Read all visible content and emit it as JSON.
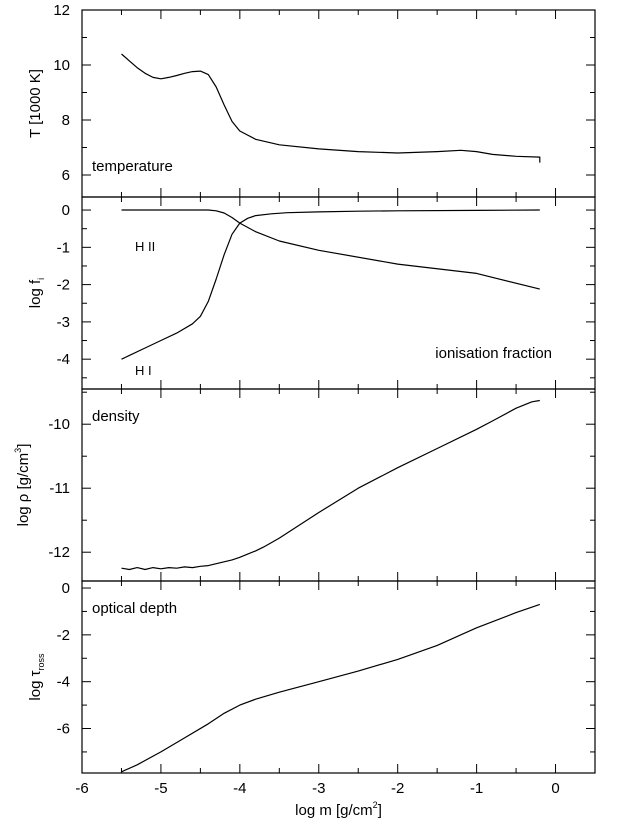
{
  "chart_data": [
    {
      "type": "line",
      "panel": "temperature",
      "ylabel": "T [1000 K]",
      "annotation": "temperature",
      "xlim": [
        -6,
        0.5
      ],
      "ylim": [
        5.2,
        12
      ],
      "yticks": [
        6,
        8,
        10,
        12
      ],
      "ytick_labels": [
        "6",
        "8",
        "10",
        "12"
      ],
      "series": [
        {
          "x": [
            -5.5,
            -5.4,
            -5.3,
            -5.2,
            -5.1,
            -5.0,
            -4.9,
            -4.8,
            -4.7,
            -4.6,
            -4.5,
            -4.4,
            -4.3,
            -4.2,
            -4.1,
            -4.0,
            -3.8,
            -3.5,
            -3.0,
            -2.5,
            -2.0,
            -1.5,
            -1.2,
            -1.0,
            -0.8,
            -0.5,
            -0.2,
            -0.2
          ],
          "y": [
            10.4,
            10.15,
            9.9,
            9.7,
            9.55,
            9.5,
            9.55,
            9.62,
            9.7,
            9.76,
            9.78,
            9.65,
            9.2,
            8.55,
            7.95,
            7.6,
            7.3,
            7.1,
            6.95,
            6.85,
            6.8,
            6.85,
            6.9,
            6.85,
            6.75,
            6.68,
            6.65,
            6.45
          ]
        }
      ]
    },
    {
      "type": "line",
      "panel": "ionisation",
      "ylabel": "log f",
      "ylabel_sub": "i",
      "annotation": "ionisation fraction",
      "xlim": [
        -6,
        0.5
      ],
      "ylim": [
        -4.8,
        0.35
      ],
      "yticks": [
        0,
        -1,
        -2,
        -3,
        -4
      ],
      "ytick_labels": [
        "0",
        "-1",
        "-2",
        "-3",
        "-4"
      ],
      "series": [
        {
          "name": "H II",
          "x": [
            -5.5,
            -5.0,
            -4.6,
            -4.4,
            -4.3,
            -4.2,
            -4.1,
            -4.0,
            -3.8,
            -3.5,
            -3.0,
            -2.0,
            -1.0,
            -0.2
          ],
          "y": [
            0.0,
            0.0,
            0.0,
            0.0,
            -0.02,
            -0.08,
            -0.2,
            -0.35,
            -0.58,
            -0.83,
            -1.08,
            -1.45,
            -1.7,
            -2.12
          ]
        },
        {
          "name": "H I",
          "x": [
            -5.5,
            -5.2,
            -5.0,
            -4.8,
            -4.6,
            -4.5,
            -4.4,
            -4.3,
            -4.2,
            -4.1,
            -4.0,
            -3.9,
            -3.8,
            -3.6,
            -3.4,
            -3.0,
            -2.5,
            -2.0,
            -1.0,
            -0.2
          ],
          "y": [
            -4.0,
            -3.7,
            -3.5,
            -3.3,
            -3.05,
            -2.85,
            -2.45,
            -1.85,
            -1.2,
            -0.65,
            -0.35,
            -0.22,
            -0.15,
            -0.1,
            -0.07,
            -0.05,
            -0.03,
            -0.02,
            -0.01,
            0.0
          ]
        }
      ],
      "series_labels": [
        "H II",
        "H I"
      ]
    },
    {
      "type": "line",
      "panel": "density",
      "ylabel": "log ρ [g/cm",
      "ylabel_sup": "3",
      "ylabel_tail": "]",
      "annotation": "density",
      "xlim": [
        -6,
        0.5
      ],
      "ylim": [
        -12.45,
        -9.45
      ],
      "yticks": [
        -10,
        -11,
        -12
      ],
      "ytick_labels": [
        "-10",
        "-11",
        "-12"
      ],
      "series": [
        {
          "x": [
            -5.5,
            -5.4,
            -5.3,
            -5.2,
            -5.1,
            -5.0,
            -4.9,
            -4.8,
            -4.7,
            -4.6,
            -4.5,
            -4.4,
            -4.3,
            -4.2,
            -4.1,
            -4.0,
            -3.9,
            -3.8,
            -3.7,
            -3.6,
            -3.5,
            -3.4,
            -3.3,
            -3.2,
            -3.1,
            -3.0,
            -2.5,
            -2.0,
            -1.5,
            -1.0,
            -0.8,
            -0.5,
            -0.3,
            -0.2
          ],
          "y": [
            -12.25,
            -12.27,
            -12.24,
            -12.27,
            -12.24,
            -12.26,
            -12.24,
            -12.25,
            -12.23,
            -12.24,
            -12.22,
            -12.21,
            -12.18,
            -12.15,
            -12.12,
            -12.08,
            -12.03,
            -11.98,
            -11.92,
            -11.85,
            -11.78,
            -11.7,
            -11.62,
            -11.54,
            -11.46,
            -11.38,
            -11.0,
            -10.68,
            -10.38,
            -10.08,
            -9.95,
            -9.75,
            -9.65,
            -9.63
          ]
        }
      ]
    },
    {
      "type": "line",
      "panel": "optical depth",
      "ylabel": "log τ",
      "ylabel_sub": "ross",
      "annotation": "optical depth",
      "xlim": [
        -6,
        0.5
      ],
      "ylim": [
        -7.9,
        0.3
      ],
      "yticks": [
        0,
        -2,
        -4,
        -6
      ],
      "ytick_labels": [
        "0",
        "-2",
        "-4",
        "-6"
      ],
      "xticks": [
        -6,
        -5,
        -4,
        -3,
        -2,
        -1,
        0
      ],
      "xtick_labels": [
        "-6",
        "-5",
        "-4",
        "-3",
        "-2",
        "-1",
        "0"
      ],
      "xlabel": "log m [g/cm",
      "xlabel_sup": "2",
      "xlabel_tail": "]",
      "series": [
        {
          "x": [
            -5.5,
            -5.3,
            -5.0,
            -4.7,
            -4.4,
            -4.2,
            -4.0,
            -3.8,
            -3.5,
            -3.0,
            -2.5,
            -2.0,
            -1.5,
            -1.0,
            -0.5,
            -0.2
          ],
          "y": [
            -7.85,
            -7.55,
            -7.0,
            -6.4,
            -5.8,
            -5.35,
            -5.0,
            -4.75,
            -4.45,
            -4.0,
            -3.55,
            -3.05,
            -2.45,
            -1.7,
            -1.05,
            -0.7
          ]
        }
      ]
    }
  ]
}
